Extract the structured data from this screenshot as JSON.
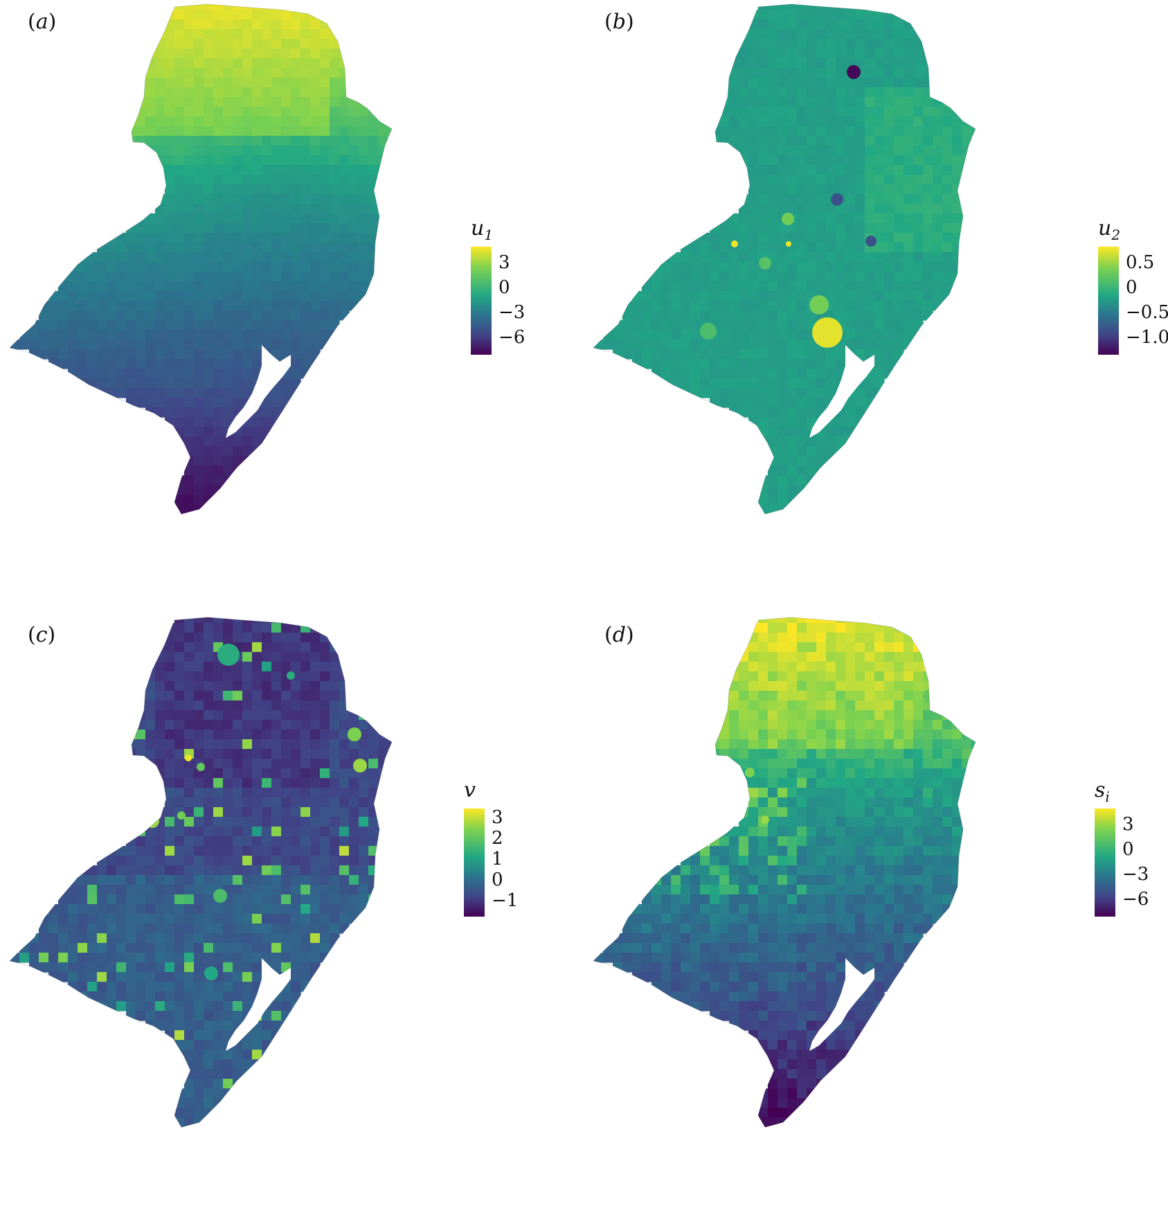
{
  "colors": {
    "viridis": [
      "#440154",
      "#414487",
      "#2a788e",
      "#22a884",
      "#7ad151",
      "#fde725"
    ],
    "lagoon": "#ffffff"
  },
  "panels": [
    {
      "label": "a",
      "legend": {
        "symbol": "u",
        "subscript": "1",
        "ticks": [
          "3",
          "0",
          "−3",
          "−6"
        ],
        "range": [
          -6.5,
          4.5
        ]
      },
      "pattern": "north-high gradient"
    },
    {
      "label": "b",
      "legend": {
        "symbol": "u",
        "subscript": "2",
        "ticks": [
          "0.5",
          "0",
          "−0.5",
          "−1.0"
        ],
        "range": [
          -1.15,
          0.8
        ]
      },
      "pattern": "mostly near zero with scattered outliers"
    },
    {
      "label": "c",
      "legend": {
        "symbol": "v",
        "subscript": "",
        "ticks": [
          "3",
          "2",
          "1",
          "0",
          "−1"
        ],
        "range": [
          -1.7,
          3.5
        ]
      },
      "pattern": "mostly low with scattered high values"
    },
    {
      "label": "d",
      "legend": {
        "symbol": "s",
        "subscript": "i",
        "ticks": [
          "3",
          "0",
          "−3",
          "−6"
        ],
        "range": [
          -6.5,
          4.5
        ]
      },
      "pattern": "north-high gradient with local variation"
    }
  ]
}
